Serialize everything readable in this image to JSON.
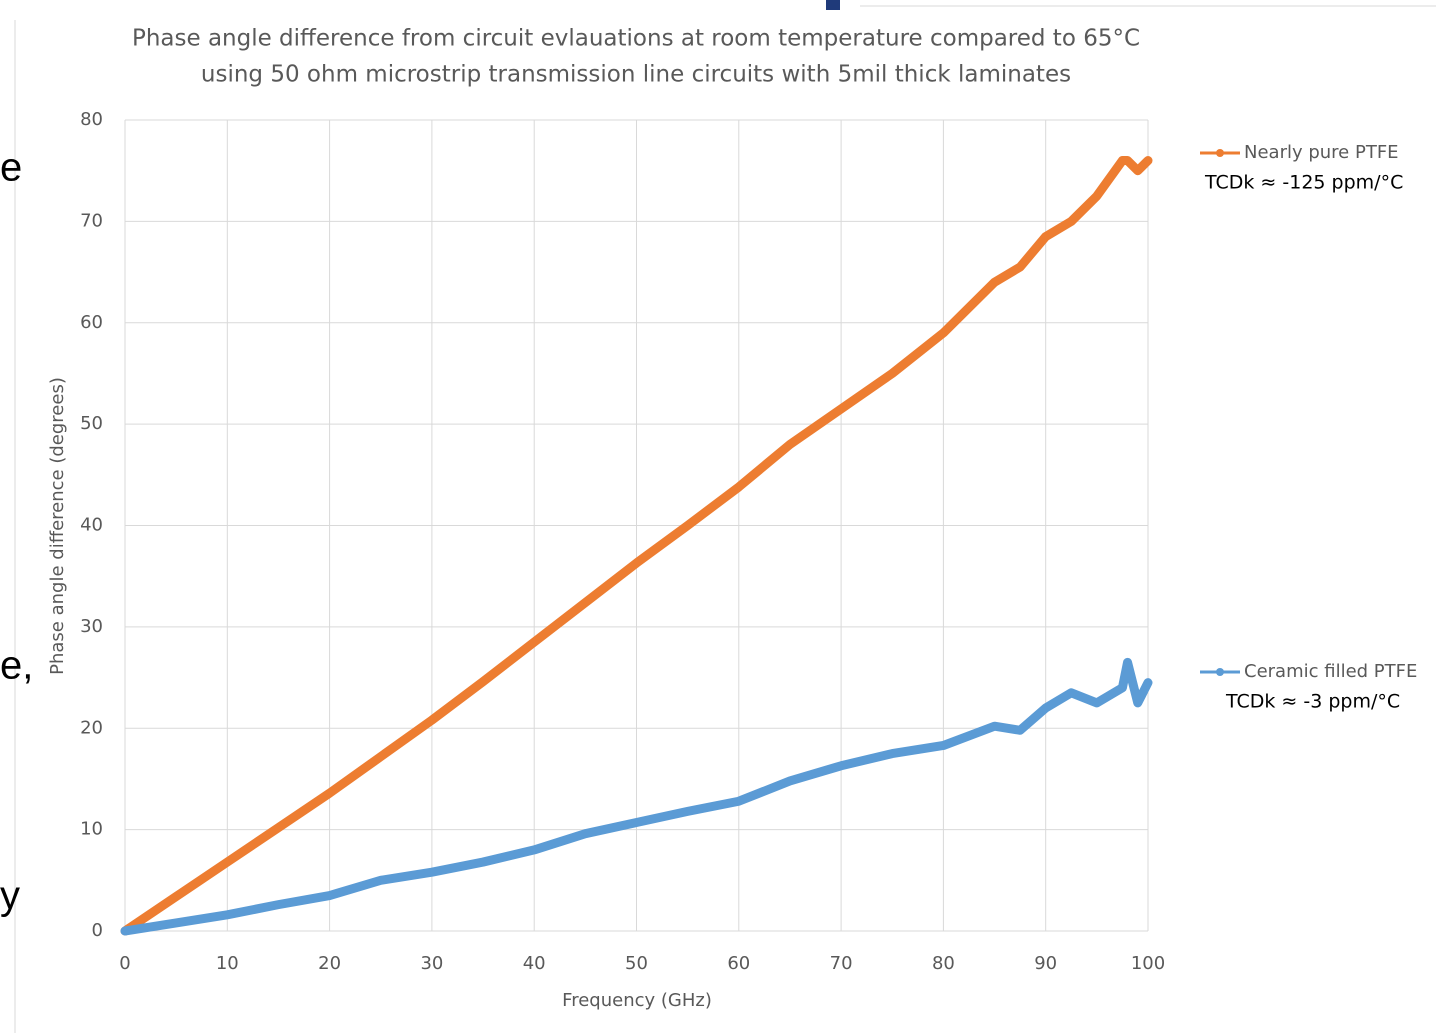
{
  "chart_data": {
    "type": "line",
    "title": [
      "Phase angle difference from circuit evlauations at room temperature compared to 65°C",
      "using 50 ohm microstrip transmission line circuits with 5mil thick laminates"
    ],
    "xlabel": "Frequency (GHz)",
    "ylabel": "Phase angle difference (degrees)",
    "x": [
      0,
      5,
      10,
      15,
      20,
      25,
      30,
      35,
      40,
      45,
      50,
      55,
      60,
      65,
      70,
      75,
      80,
      85,
      87.5,
      90,
      92.5,
      95,
      97.5,
      98,
      99,
      100
    ],
    "series": [
      {
        "name": "Nearly pure PTFE",
        "color": "#ed7d31",
        "values": [
          0,
          3.4,
          6.8,
          10.2,
          13.6,
          17.2,
          20.8,
          24.6,
          28.5,
          32.4,
          36.3,
          40,
          43.8,
          48,
          51.5,
          55,
          59,
          64,
          65.5,
          68.5,
          70,
          72.5,
          76,
          76,
          75,
          76
        ]
      },
      {
        "name": "Ceramic filled PTFE",
        "color": "#5b9bd5",
        "values": [
          0,
          0.8,
          1.6,
          2.6,
          3.5,
          5,
          5.8,
          6.8,
          8,
          9.6,
          10.7,
          11.8,
          12.8,
          14.8,
          16.3,
          17.5,
          18.3,
          20.2,
          19.8,
          22,
          23.5,
          22.5,
          24,
          26.5,
          22.5,
          24.5
        ]
      }
    ],
    "annotations": [
      "TCDk ≈ -125 ppm/°C",
      "TCDk ≈ -3 ppm/°C"
    ],
    "xlim": [
      0,
      100
    ],
    "xticks": [
      0,
      10,
      20,
      30,
      40,
      50,
      60,
      70,
      80,
      90,
      100
    ],
    "ylim": [
      0,
      80
    ],
    "yticks": [
      0,
      10,
      20,
      30,
      40,
      50,
      60,
      70,
      80
    ],
    "grid": true,
    "legend": "right"
  },
  "background_fragments": [
    "e",
    "e,",
    "y"
  ]
}
